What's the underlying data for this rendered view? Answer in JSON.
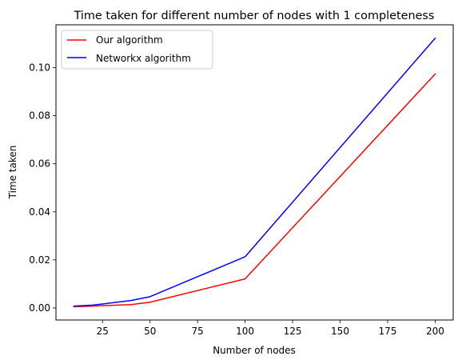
{
  "chart_data": {
    "type": "line",
    "title": "Time taken for different number of nodes with 1 completeness",
    "xlabel": "Number of nodes",
    "ylabel": "Time taken",
    "x": [
      10,
      20,
      40,
      50,
      100,
      200
    ],
    "series": [
      {
        "name": "Our algorithm",
        "color": "#ff0000",
        "values": [
          0.0005,
          0.0008,
          0.0014,
          0.0024,
          0.0121,
          0.0973
        ]
      },
      {
        "name": "Networkx algorithm",
        "color": "#0000ff",
        "values": [
          0.0008,
          0.0012,
          0.0031,
          0.0047,
          0.0213,
          0.1122
        ]
      }
    ],
    "xticks": [
      25,
      50,
      75,
      100,
      125,
      150,
      175,
      200
    ],
    "xtick_labels": [
      "25",
      "50",
      "75",
      "100",
      "125",
      "150",
      "175",
      "200"
    ],
    "yticks": [
      0.0,
      0.02,
      0.04,
      0.06,
      0.08,
      0.1
    ],
    "ytick_labels": [
      "0.00",
      "0.02",
      "0.04",
      "0.06",
      "0.08",
      "0.10"
    ],
    "xlim": [
      0.5,
      209.5
    ],
    "ylim": [
      -0.005,
      0.1178
    ],
    "grid": false,
    "legend_position": "upper-left"
  }
}
